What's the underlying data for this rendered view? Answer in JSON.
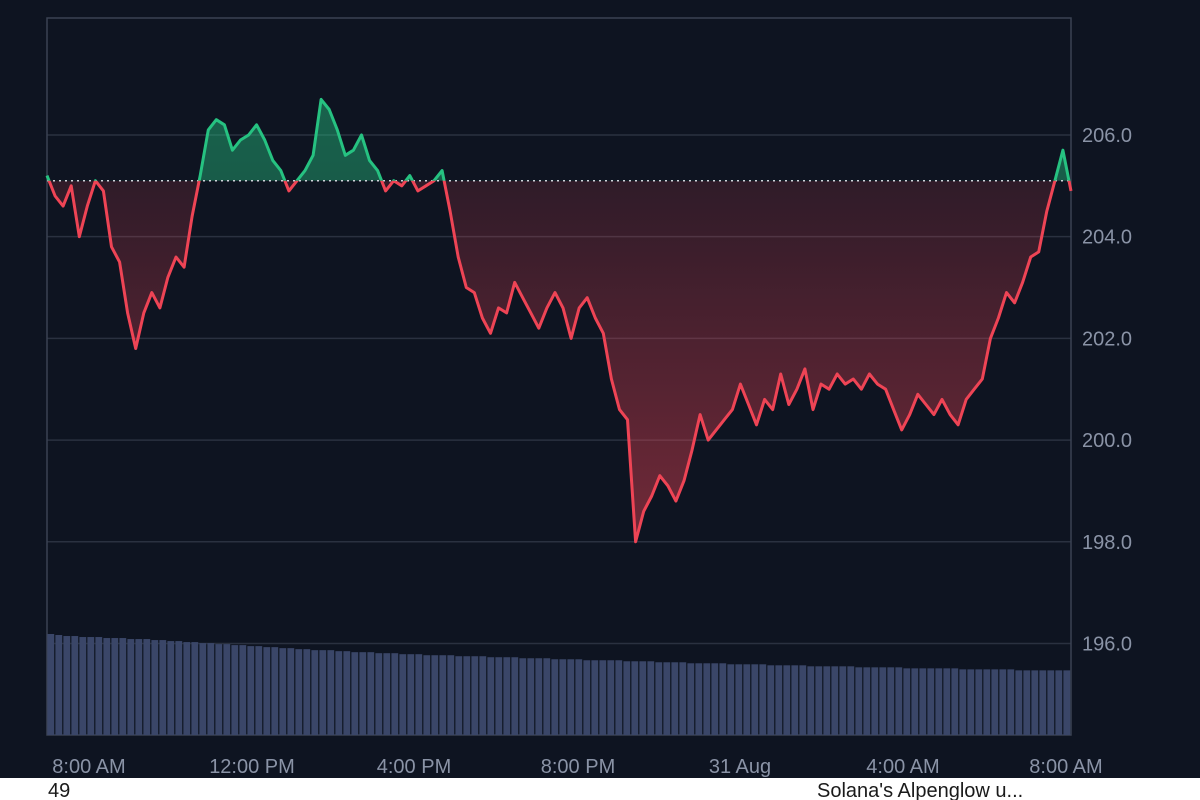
{
  "colors": {
    "background": "#0e1421",
    "grid": "#2a3140",
    "border": "#3a4253",
    "up": "#26c281",
    "down": "#ee4455",
    "baseline": "#cfd3da",
    "volume": "#3a4668",
    "tick_text": "#8a93a6"
  },
  "bottom_strip": {
    "left_text": "49",
    "right_text": "Solana's Alpenglow u..."
  },
  "chart_data": {
    "type": "line",
    "title": "",
    "xlabel": "",
    "ylabel": "",
    "ylim": [
      194.2,
      208.3
    ],
    "baseline": 205.1,
    "x_ticks": [
      "8:00 AM",
      "12:00 PM",
      "4:00 PM",
      "8:00 PM",
      "31 Aug",
      "4:00 AM",
      "8:00 AM"
    ],
    "y_ticks": [
      "196.0",
      "198.0",
      "200.0",
      "202.0",
      "204.0",
      "206.0"
    ],
    "y_tick_values": [
      196,
      198,
      200,
      202,
      204,
      206
    ],
    "grid": true,
    "series": [
      {
        "values": [
          205.2,
          204.8,
          204.6,
          205.0,
          204.0,
          204.6,
          205.1,
          204.9,
          203.8,
          203.5,
          202.5,
          201.8,
          202.5,
          202.9,
          202.6,
          203.2,
          203.6,
          203.4,
          204.4,
          205.2,
          206.1,
          206.3,
          206.2,
          205.7,
          205.9,
          206.0,
          206.2,
          205.9,
          205.5,
          205.3,
          204.9,
          205.1,
          205.3,
          205.6,
          206.7,
          206.5,
          206.1,
          205.6,
          205.7,
          206.0,
          205.5,
          205.3,
          204.9,
          205.1,
          205.0,
          205.2,
          204.9,
          205.0,
          205.1,
          205.3,
          204.5,
          203.6,
          203.0,
          202.9,
          202.4,
          202.1,
          202.6,
          202.5,
          203.1,
          202.8,
          202.5,
          202.2,
          202.6,
          202.9,
          202.6,
          202.0,
          202.6,
          202.8,
          202.4,
          202.1,
          201.2,
          200.6,
          200.4,
          198.0,
          198.6,
          198.9,
          199.3,
          199.1,
          198.8,
          199.2,
          199.8,
          200.5,
          200.0,
          200.2,
          200.4,
          200.6,
          201.1,
          200.7,
          200.3,
          200.8,
          200.6,
          201.3,
          200.7,
          201.0,
          201.4,
          200.6,
          201.1,
          201.0,
          201.3,
          201.1,
          201.2,
          201.0,
          201.3,
          201.1,
          201.0,
          200.6,
          200.2,
          200.5,
          200.9,
          200.7,
          200.5,
          200.8,
          200.5,
          200.3,
          200.8,
          201.0,
          201.2,
          202.0,
          202.4,
          202.9,
          202.7,
          203.1,
          203.6,
          203.7,
          204.5,
          205.1,
          205.7,
          204.9
        ]
      }
    ],
    "volume": {
      "values": [
        100,
        99,
        98,
        98,
        97,
        97,
        97,
        96,
        96,
        96,
        95,
        95,
        95,
        94,
        94,
        93,
        93,
        92,
        92,
        91,
        91,
        90,
        90,
        89,
        89,
        88,
        88,
        87,
        87,
        86,
        86,
        85,
        85,
        84,
        84,
        84,
        83,
        83,
        82,
        82,
        82,
        81,
        81,
        81,
        80,
        80,
        80,
        79,
        79,
        79,
        79,
        78,
        78,
        78,
        78,
        77,
        77,
        77,
        77,
        76,
        76,
        76,
        76,
        75,
        75,
        75,
        75,
        74,
        74,
        74,
        74,
        74,
        73,
        73,
        73,
        73,
        72,
        72,
        72,
        72,
        71,
        71,
        71,
        71,
        71,
        70,
        70,
        70,
        70,
        70,
        69,
        69,
        69,
        69,
        69,
        68,
        68,
        68,
        68,
        68,
        68,
        67,
        67,
        67,
        67,
        67,
        67,
        66,
        66,
        66,
        66,
        66,
        66,
        66,
        65,
        65,
        65,
        65,
        65,
        65,
        65,
        64,
        64,
        64,
        64,
        64,
        64,
        64
      ],
      "max": 100
    }
  }
}
